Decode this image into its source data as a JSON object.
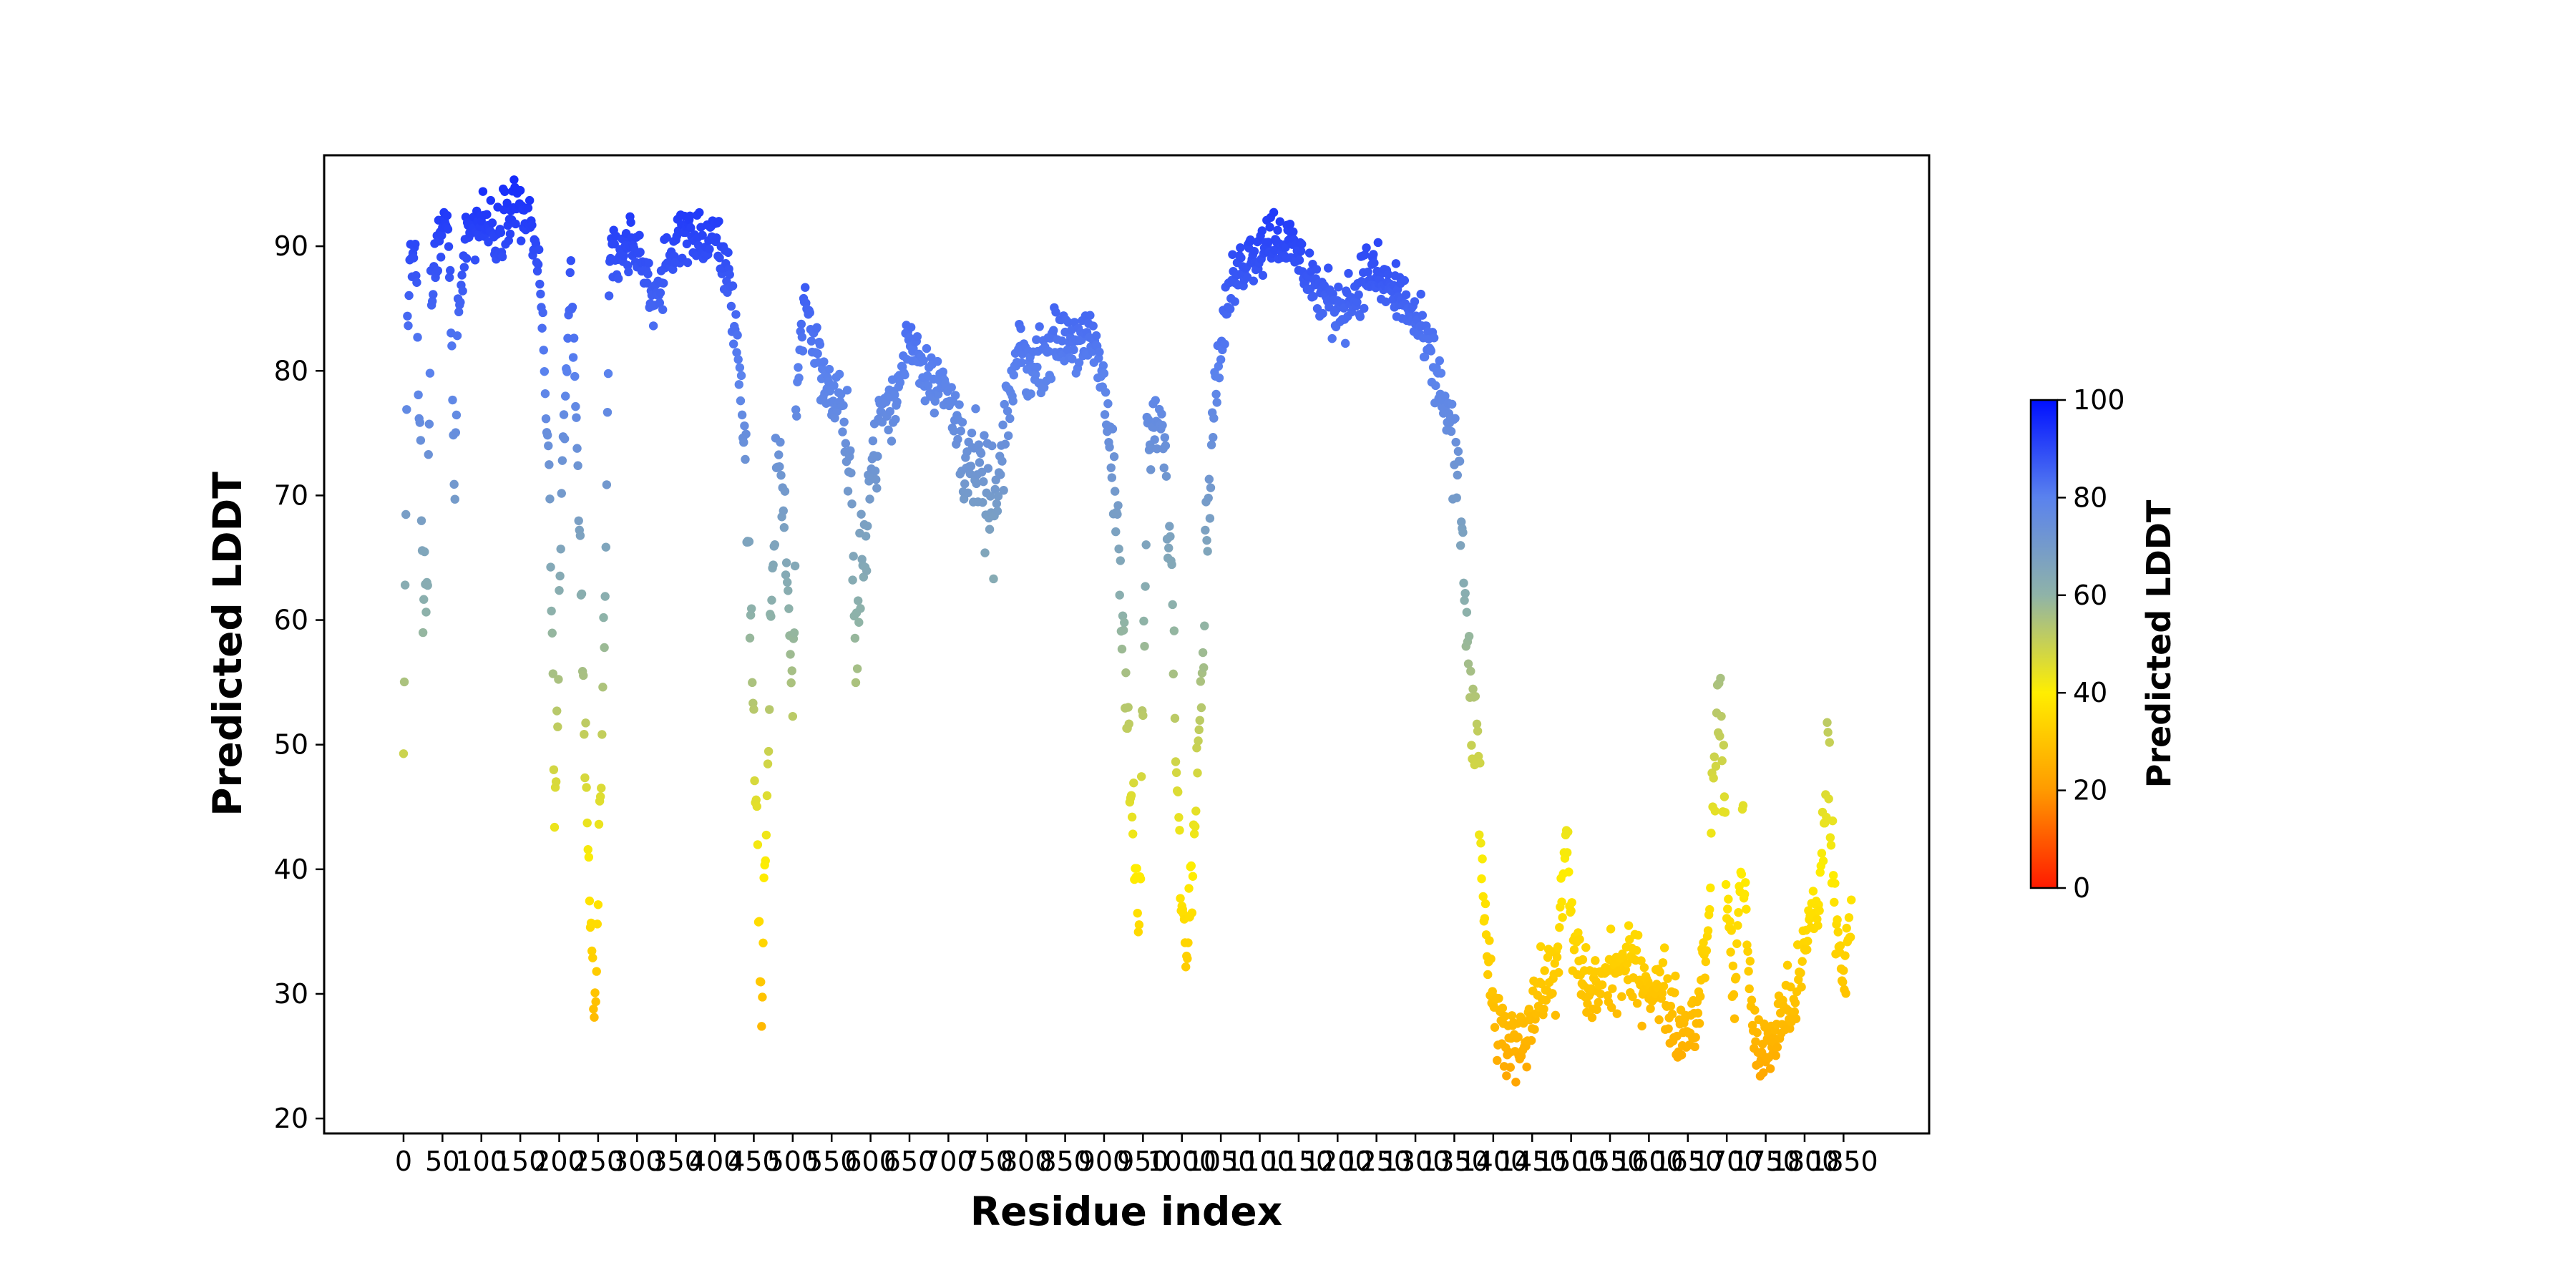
{
  "chart_data": {
    "type": "scatter",
    "title": "",
    "xlabel": "Residue index",
    "ylabel": "Predicted LDDT",
    "xlim": [
      -102,
      1960
    ],
    "ylim": [
      18.8,
      97.3
    ],
    "xticks": [
      0,
      50,
      100,
      150,
      200,
      250,
      300,
      350,
      400,
      450,
      500,
      550,
      600,
      650,
      700,
      750,
      800,
      850,
      900,
      950,
      1000,
      1050,
      1100,
      1150,
      1200,
      1250,
      1300,
      1350,
      1400,
      1450,
      1500,
      1550,
      1600,
      1650,
      1700,
      1750,
      1800,
      1850
    ],
    "yticks": [
      20,
      30,
      40,
      50,
      60,
      70,
      80,
      90
    ],
    "grid": false,
    "colormap": {
      "name": "red-yellow-blue",
      "stops": [
        {
          "value": 0,
          "color": "#ff1a00"
        },
        {
          "value": 20,
          "color": "#ff9a00"
        },
        {
          "value": 40,
          "color": "#ffee00"
        },
        {
          "value": 60,
          "color": "#8fb3a8"
        },
        {
          "value": 80,
          "color": "#5a82ee"
        },
        {
          "value": 100,
          "color": "#0010ff"
        }
      ],
      "ticks": [
        0,
        20,
        40,
        60,
        80,
        100
      ],
      "label": "Predicted LDDT",
      "range": [
        0,
        100
      ]
    },
    "series": [
      {
        "description_profile": [
          [
            0,
            47
          ],
          [
            5,
            85
          ],
          [
            15,
            91
          ],
          [
            25,
            62
          ],
          [
            30,
            60
          ],
          [
            35,
            86
          ],
          [
            45,
            90
          ],
          [
            55,
            92
          ],
          [
            60,
            88
          ],
          [
            65,
            70
          ],
          [
            70,
            85
          ],
          [
            80,
            91
          ],
          [
            100,
            92
          ],
          [
            120,
            91
          ],
          [
            140,
            94
          ],
          [
            160,
            92
          ],
          [
            175,
            88
          ],
          [
            185,
            75
          ],
          [
            195,
            45
          ],
          [
            205,
            72
          ],
          [
            215,
            88
          ],
          [
            225,
            70
          ],
          [
            235,
            45
          ],
          [
            245,
            27
          ],
          [
            255,
            50
          ],
          [
            265,
            88
          ],
          [
            280,
            90
          ],
          [
            300,
            90
          ],
          [
            320,
            86
          ],
          [
            340,
            88
          ],
          [
            360,
            92
          ],
          [
            380,
            90
          ],
          [
            400,
            91
          ],
          [
            415,
            88
          ],
          [
            430,
            82
          ],
          [
            440,
            72
          ],
          [
            450,
            50
          ],
          [
            460,
            28
          ],
          [
            470,
            55
          ],
          [
            480,
            75
          ],
          [
            490,
            68
          ],
          [
            500,
            52
          ],
          [
            505,
            78
          ],
          [
            515,
            86
          ],
          [
            530,
            82
          ],
          [
            545,
            78
          ],
          [
            560,
            78
          ],
          [
            575,
            72
          ],
          [
            580,
            55
          ],
          [
            590,
            66
          ],
          [
            600,
            72
          ],
          [
            615,
            77
          ],
          [
            630,
            77
          ],
          [
            650,
            83
          ],
          [
            670,
            80
          ],
          [
            690,
            79
          ],
          [
            710,
            76
          ],
          [
            730,
            72
          ],
          [
            750,
            70
          ],
          [
            760,
            68
          ],
          [
            775,
            76
          ],
          [
            790,
            82
          ],
          [
            810,
            80
          ],
          [
            830,
            82
          ],
          [
            850,
            83
          ],
          [
            870,
            82
          ],
          [
            890,
            82
          ],
          [
            905,
            76
          ],
          [
            915,
            70
          ],
          [
            925,
            60
          ],
          [
            935,
            45
          ],
          [
            945,
            35
          ],
          [
            955,
            72
          ],
          [
            965,
            76
          ],
          [
            975,
            75
          ],
          [
            985,
            66
          ],
          [
            995,
            45
          ],
          [
            1005,
            32
          ],
          [
            1015,
            45
          ],
          [
            1025,
            55
          ],
          [
            1035,
            72
          ],
          [
            1045,
            80
          ],
          [
            1060,
            86
          ],
          [
            1080,
            89
          ],
          [
            1100,
            90
          ],
          [
            1120,
            91
          ],
          [
            1140,
            90
          ],
          [
            1160,
            88
          ],
          [
            1180,
            86
          ],
          [
            1200,
            85
          ],
          [
            1220,
            86
          ],
          [
            1240,
            88
          ],
          [
            1260,
            87
          ],
          [
            1280,
            86
          ],
          [
            1300,
            84
          ],
          [
            1320,
            81
          ],
          [
            1340,
            77
          ],
          [
            1355,
            72
          ],
          [
            1360,
            65
          ],
          [
            1370,
            55
          ],
          [
            1380,
            48
          ],
          [
            1390,
            35
          ],
          [
            1400,
            28
          ],
          [
            1420,
            26
          ],
          [
            1440,
            27
          ],
          [
            1460,
            30
          ],
          [
            1480,
            32
          ],
          [
            1495,
            42
          ],
          [
            1500,
            35
          ],
          [
            1520,
            30
          ],
          [
            1540,
            31
          ],
          [
            1560,
            32
          ],
          [
            1580,
            32
          ],
          [
            1600,
            31
          ],
          [
            1620,
            30
          ],
          [
            1640,
            27
          ],
          [
            1660,
            28
          ],
          [
            1675,
            35
          ],
          [
            1685,
            48
          ],
          [
            1690,
            56
          ],
          [
            1700,
            38
          ],
          [
            1710,
            30
          ],
          [
            1720,
            42
          ],
          [
            1735,
            26
          ],
          [
            1750,
            25
          ],
          [
            1770,
            28
          ],
          [
            1790,
            30
          ],
          [
            1805,
            35
          ],
          [
            1820,
            38
          ],
          [
            1830,
            50
          ],
          [
            1840,
            35
          ],
          [
            1850,
            31
          ],
          [
            1860,
            36
          ]
        ]
      }
    ]
  }
}
